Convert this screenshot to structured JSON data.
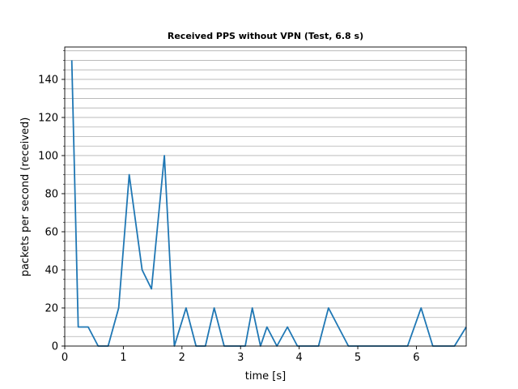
{
  "chart_data": {
    "type": "line",
    "title": "Received PPS without VPN (Test, 6.8 s)",
    "xlabel": "time [s]",
    "ylabel": "packets per second (received)",
    "xlim": [
      0,
      6.85
    ],
    "ylim": [
      0,
      157
    ],
    "x_ticks": [
      0,
      1,
      2,
      3,
      4,
      5,
      6
    ],
    "y_ticks": [
      0,
      20,
      40,
      60,
      80,
      100,
      120,
      140
    ],
    "y_minor_step": 5,
    "grid": "horizontal (major and minor)",
    "line_color": "#1f77b4",
    "series": [
      {
        "x": [
          0.12,
          0.23,
          0.4,
          0.57,
          0.74,
          0.92,
          1.1,
          1.32,
          1.48,
          1.7,
          1.87,
          2.07,
          2.24,
          2.4,
          2.55,
          2.72,
          2.92,
          3.08,
          3.2,
          3.34,
          3.45,
          3.62,
          3.8,
          3.97,
          4.12,
          4.33,
          4.5,
          4.67,
          4.84,
          5.0,
          5.2,
          5.4,
          5.6,
          5.85,
          6.08,
          6.28,
          6.45,
          6.65,
          6.85
        ],
        "y": [
          150,
          10,
          10,
          0,
          0,
          20,
          90,
          40,
          30,
          100,
          0,
          20,
          0,
          0,
          20,
          0,
          0,
          0,
          20,
          0,
          10,
          0,
          10,
          0,
          0,
          0,
          20,
          10,
          0,
          0,
          0,
          0,
          0,
          0,
          20,
          0,
          0,
          0,
          10
        ]
      }
    ]
  }
}
